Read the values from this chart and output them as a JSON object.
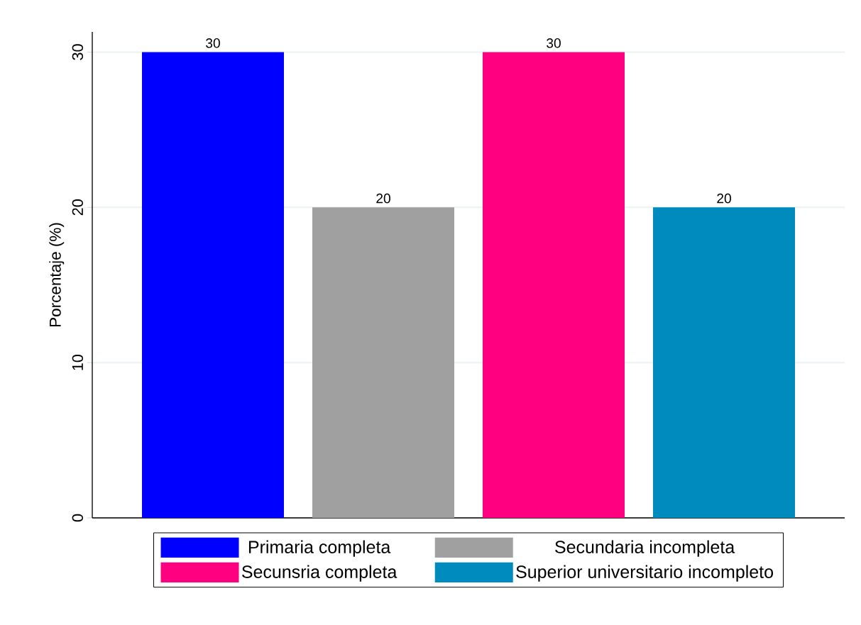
{
  "chart_data": {
    "type": "bar",
    "ylabel": "Porcentaje (%)",
    "categories": [
      null
    ],
    "series": [
      {
        "name": "Primaria completa",
        "color": "#0000ff",
        "values": [
          30
        ]
      },
      {
        "name": "Secundaria incompleta",
        "color": "#a0a0a0",
        "values": [
          20
        ]
      },
      {
        "name": "Secunsria completa",
        "color": "#ff0080",
        "values": [
          30
        ]
      },
      {
        "name": "Superior universitario incompleto",
        "color": "#008bbf",
        "values": [
          20
        ]
      }
    ],
    "ylim": [
      0,
      31.3
    ],
    "yticks": [
      0,
      10,
      20,
      30
    ],
    "grid": "y",
    "legend": "bottom",
    "data_labels": true
  }
}
